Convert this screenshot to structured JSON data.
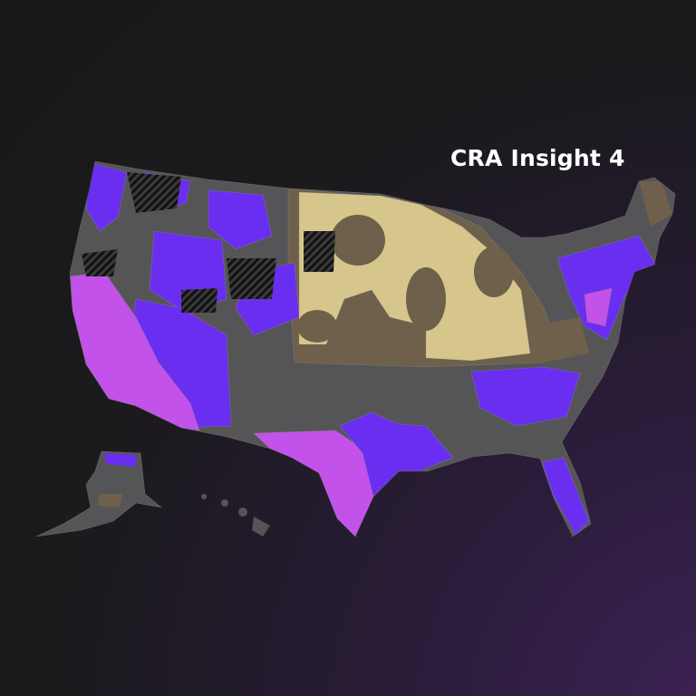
{
  "header": {
    "title": "CRA Insight 4"
  }
}
